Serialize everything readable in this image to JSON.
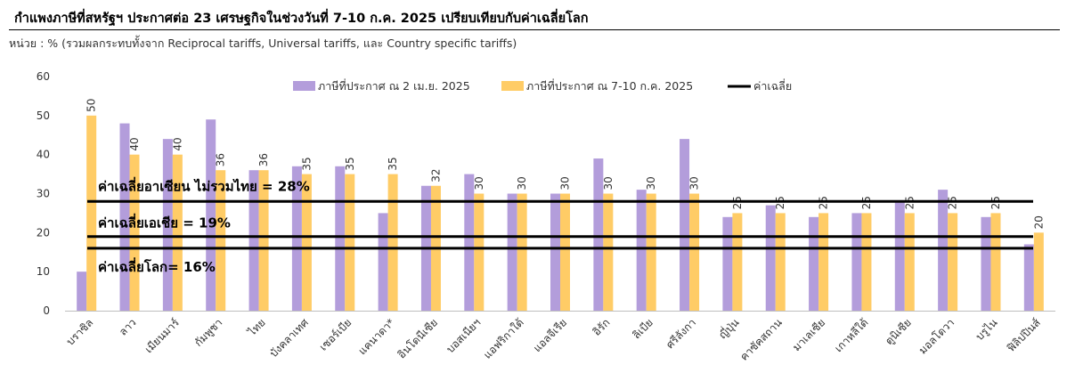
{
  "header": {
    "title": "กำแพงภาษีที่สหรัฐฯ ประกาศต่อ 23 เศรษฐกิจในช่วงวันที่ 7-10 ก.ค. 2025 เปรียบเทียบกับค่าเฉลี่ยโลก",
    "subtitle": "หน่วย : % (รวมผลกระทบทั้งจาก Reciprocal tariffs, Universal tariffs, และ Country specific tariffs)"
  },
  "chart_data": {
    "type": "bar",
    "title": "กำแพงภาษีที่สหรัฐฯ ประกาศต่อ 23 เศรษฐกิจในช่วงวันที่ 7-10 ก.ค. 2025 เปรียบเทียบกับค่าเฉลี่ยโลก",
    "ylabel": "",
    "xlabel": "",
    "ylim": [
      0,
      60
    ],
    "yticks": [
      0,
      10,
      20,
      30,
      40,
      50,
      60
    ],
    "grid": false,
    "legend_position": "top",
    "categories": [
      "บราซิล",
      "ลาว",
      "เมียนมาร์",
      "กัมพูชา",
      "ไทย",
      "บังคลาเทศ",
      "เซอร์เบีย",
      "แคนาดา*",
      "อินโดนีเซีย",
      "บอสเนียฯ",
      "แอฟริกาใต้",
      "แอลจีเรีย",
      "อิรัก",
      "ลิเบีย",
      "ศรีลังกา",
      "ญี่ปุ่น",
      "คาซัคสถาน",
      "มาเลเซีย",
      "เกาหลีใต้",
      "ตูนิเซีย",
      "มอลโดวา",
      "บรูไน",
      "ฟิลิปปินส์"
    ],
    "series": [
      {
        "name": "ภาษีที่ประกาศ ณ 2 เม.ย. 2025",
        "color": "#b39ddb",
        "values": [
          10,
          48,
          44,
          49,
          36,
          37,
          37,
          25,
          32,
          35,
          30,
          30,
          39,
          31,
          44,
          24,
          27,
          24,
          25,
          28,
          31,
          24,
          17
        ]
      },
      {
        "name": "ภาษีที่ประกาศ ณ 7-10 ก.ค. 2025",
        "color": "#ffcc66",
        "values": [
          50,
          40,
          40,
          36,
          36,
          35,
          35,
          35,
          32,
          30,
          30,
          30,
          30,
          30,
          30,
          25,
          25,
          25,
          25,
          25,
          25,
          25,
          20
        ]
      }
    ],
    "data_labels": [
      "50",
      "40",
      "40",
      "36",
      "36",
      "35",
      "35",
      "35",
      "32",
      "30",
      "30",
      "30",
      "30",
      "30",
      "30",
      "25",
      "25",
      "25",
      "25",
      "25",
      "25",
      "25",
      "20"
    ],
    "reference_lines": [
      {
        "value": 28,
        "label": "ค่าเฉลี่ยอาเซียน ไม่รวมไทย = 28%"
      },
      {
        "value": 19,
        "label": "ค่าเฉลี่ยเอเชีย = 19%"
      },
      {
        "value": 16,
        "label": "ค่าเฉลี่ยโลก= 16%"
      }
    ],
    "legend_line_label": "ค่าเฉลี่ย",
    "line_color": "#000000"
  }
}
